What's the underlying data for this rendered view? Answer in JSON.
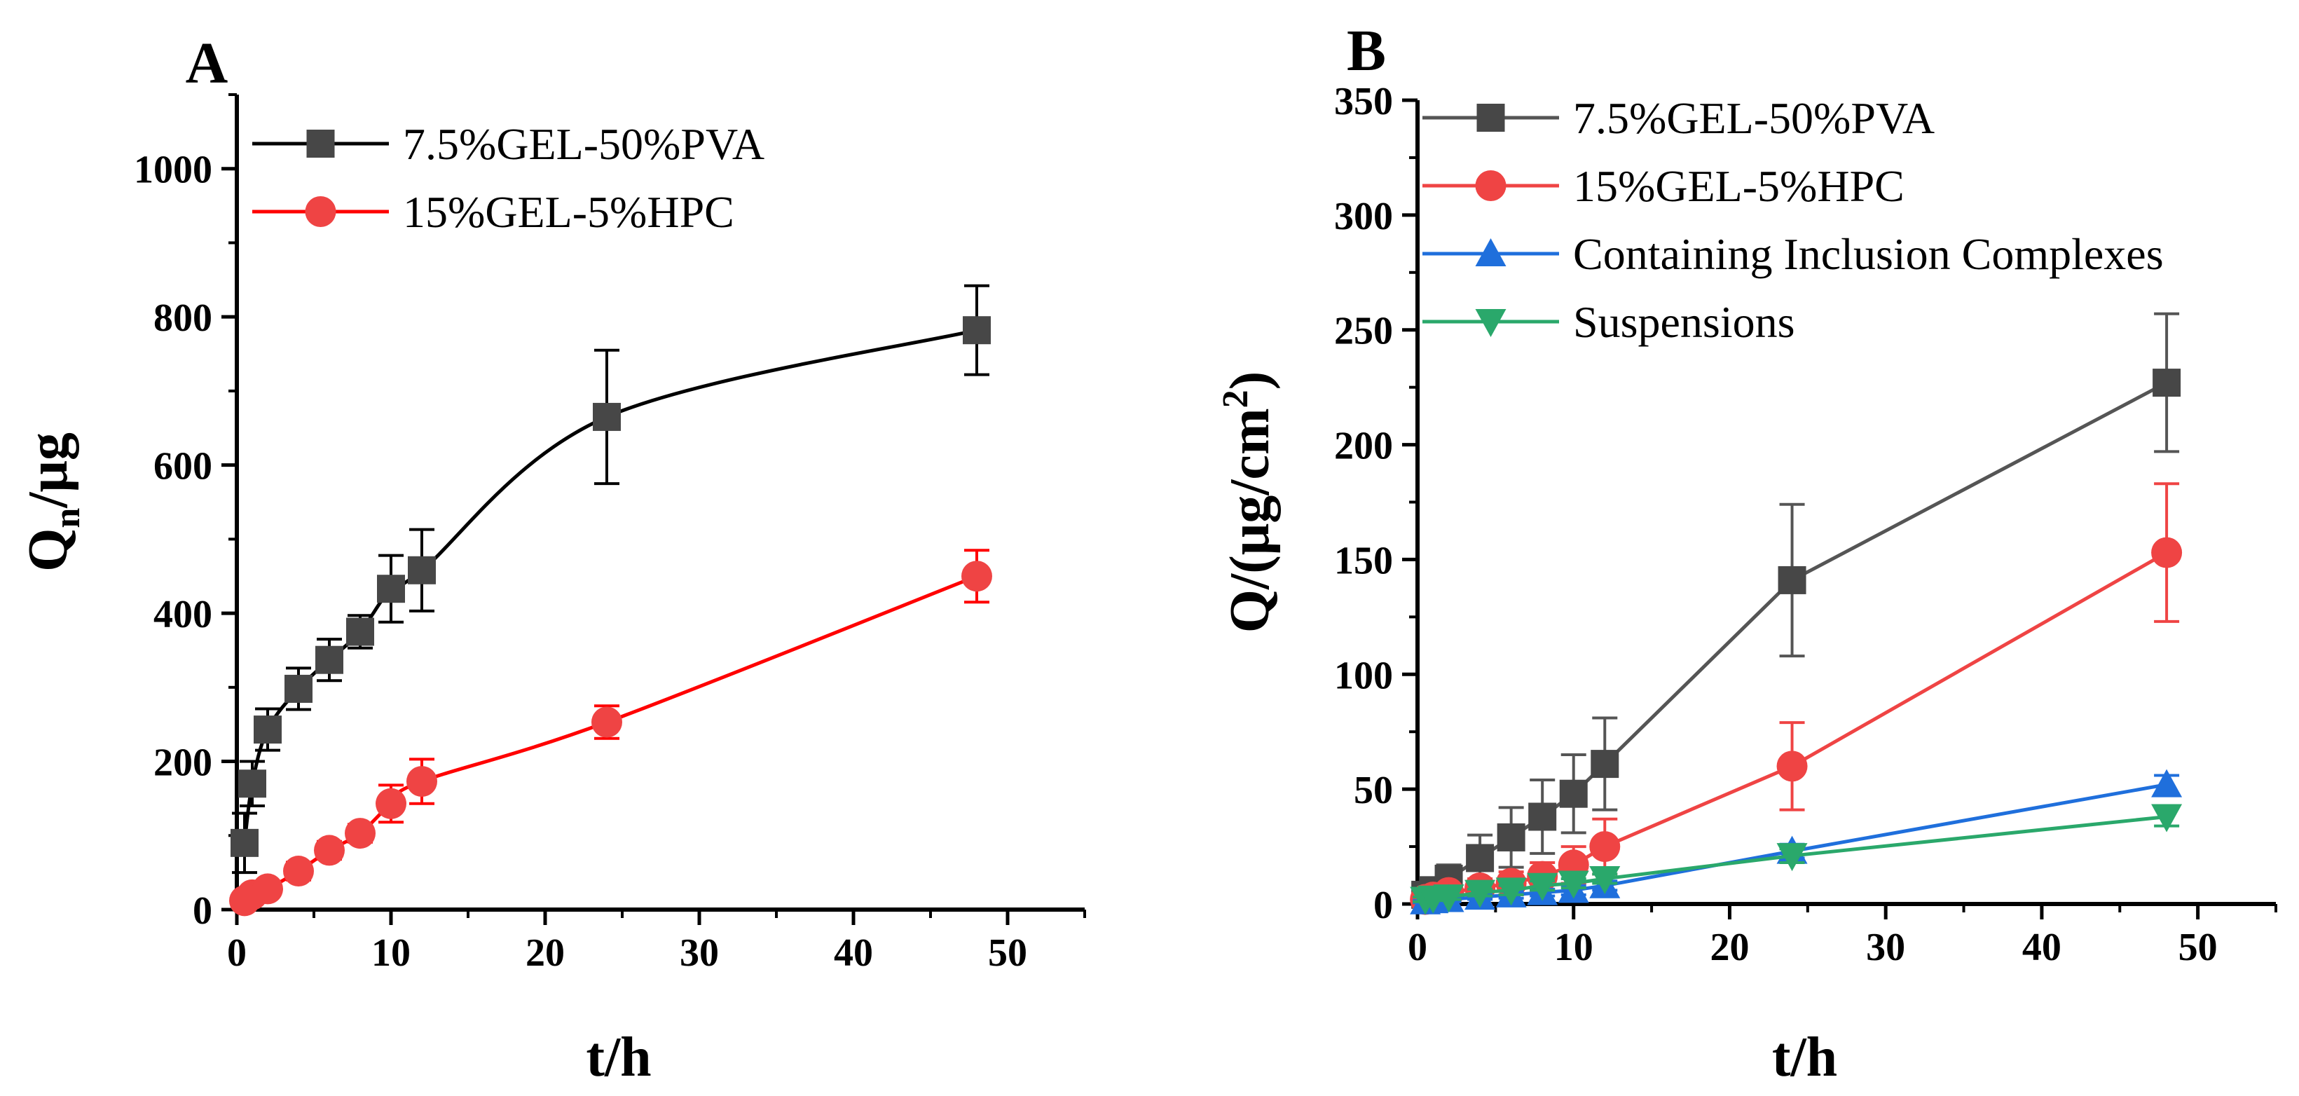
{
  "chart_data": [
    {
      "panel_label": "A",
      "type": "line",
      "xlabel": "t/h",
      "ylabel": {
        "base": "Q",
        "sub": "n",
        "rest": "/μg"
      },
      "xlim": [
        0,
        55
      ],
      "ylim": [
        0,
        1100
      ],
      "xticks": [
        0,
        10,
        20,
        30,
        40,
        50
      ],
      "yticks": [
        0,
        200,
        400,
        600,
        800,
        1000
      ],
      "legend_position": "top-left",
      "smooth": true,
      "series": [
        {
          "name": "7.5%GEL-50%PVA",
          "color": "#000000",
          "marker_color": "#474747",
          "marker": "square",
          "x": [
            0.5,
            1,
            2,
            4,
            6,
            8,
            10,
            12,
            24,
            48
          ],
          "y": [
            90,
            170,
            243,
            298,
            337,
            375,
            433,
            458,
            665,
            782
          ],
          "err": [
            40,
            30,
            28,
            28,
            28,
            22,
            45,
            55,
            90,
            60
          ]
        },
        {
          "name": "15%GEL-5%HPC",
          "color": "#ff0000",
          "marker_color": "#ef4444",
          "marker": "circle",
          "x": [
            0.5,
            1,
            2,
            4,
            6,
            8,
            10,
            12,
            24,
            48
          ],
          "y": [
            12,
            20,
            28,
            52,
            80,
            103,
            143,
            173,
            253,
            450
          ],
          "err": [
            8,
            8,
            10,
            12,
            12,
            12,
            25,
            30,
            22,
            35
          ]
        }
      ]
    },
    {
      "panel_label": "B",
      "type": "line",
      "xlabel": "t/h",
      "ylabel": {
        "base": "Q/(μg/cm",
        "sup": "2",
        "rest": ")"
      },
      "xlim": [
        0,
        55
      ],
      "ylim": [
        0,
        350
      ],
      "xticks": [
        0,
        10,
        20,
        30,
        40,
        50
      ],
      "yticks": [
        0,
        50,
        100,
        150,
        200,
        250,
        300,
        350
      ],
      "legend_position": "top-left",
      "smooth": false,
      "series": [
        {
          "name": "7.5%GEL-50%PVA",
          "color": "#555555",
          "marker_color": "#474747",
          "marker": "square",
          "x": [
            0.5,
            1,
            2,
            4,
            6,
            8,
            10,
            12,
            24,
            48
          ],
          "y": [
            4,
            6,
            11,
            20,
            29,
            38,
            48,
            61,
            141,
            227
          ],
          "err": [
            3,
            4,
            6,
            10,
            13,
            16,
            17,
            20,
            33,
            30
          ]
        },
        {
          "name": "15%GEL-5%HPC",
          "color": "#ef4444",
          "marker_color": "#ef4444",
          "marker": "circle",
          "x": [
            0.5,
            1,
            2,
            4,
            6,
            8,
            10,
            12,
            24,
            48
          ],
          "y": [
            2,
            3,
            5,
            7,
            9,
            12,
            17,
            25,
            60,
            153
          ],
          "err": [
            2,
            2,
            3,
            4,
            5,
            6,
            8,
            12,
            19,
            30
          ]
        },
        {
          "name": "Containing Inclusion Complexes",
          "color": "#1f6fdc",
          "marker_color": "#1f6fdc",
          "marker": "triangle-up",
          "x": [
            0.5,
            1,
            2,
            4,
            6,
            8,
            10,
            12,
            24,
            48
          ],
          "y": [
            1,
            1.5,
            2,
            3,
            4,
            5,
            6,
            8,
            23,
            52
          ],
          "err": [
            0.5,
            0.5,
            1,
            1,
            1.5,
            1.5,
            2,
            2,
            3,
            4
          ]
        },
        {
          "name": "Suspensions",
          "color": "#2aa86b",
          "marker_color": "#2aa86b",
          "marker": "triangle-down",
          "x": [
            0.5,
            1,
            2,
            4,
            6,
            8,
            10,
            12,
            24,
            48
          ],
          "y": [
            2,
            2.5,
            3,
            5,
            6,
            8,
            9,
            11,
            21,
            38
          ],
          "err": [
            1,
            1,
            1,
            1.5,
            2,
            2,
            2,
            2,
            3,
            4
          ]
        }
      ]
    }
  ]
}
